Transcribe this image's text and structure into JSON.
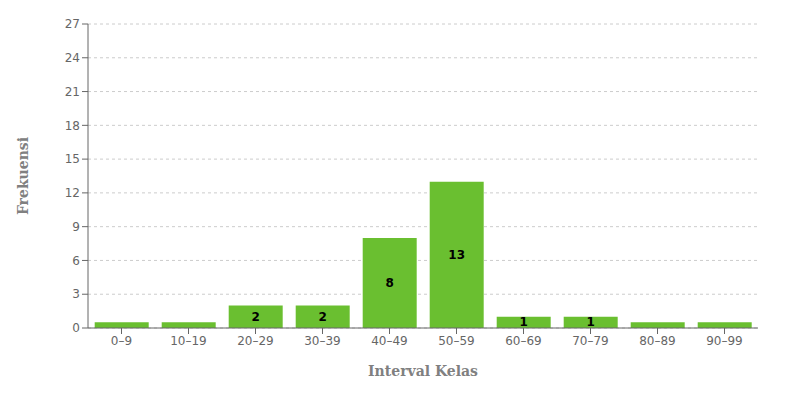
{
  "chart_data": {
    "type": "bar",
    "categories": [
      "0–9",
      "10–19",
      "20–29",
      "30–39",
      "40–49",
      "50–59",
      "60–69",
      "70–79",
      "80–89",
      "90–99"
    ],
    "values": [
      0.5,
      0.5,
      2,
      2,
      8,
      13,
      1,
      1,
      0.5,
      0.5
    ],
    "value_labels": [
      null,
      null,
      "2",
      "2",
      "8",
      "13",
      "1",
      "1",
      null,
      null
    ],
    "data_labels": true,
    "color": "#6abf30",
    "xlabel": "Interval Kelas",
    "ylabel": "Frekuensi",
    "ylim": [
      0,
      27
    ],
    "yticks": [
      0,
      3,
      6,
      9,
      12,
      15,
      18,
      21,
      24,
      27
    ],
    "grid": true
  }
}
